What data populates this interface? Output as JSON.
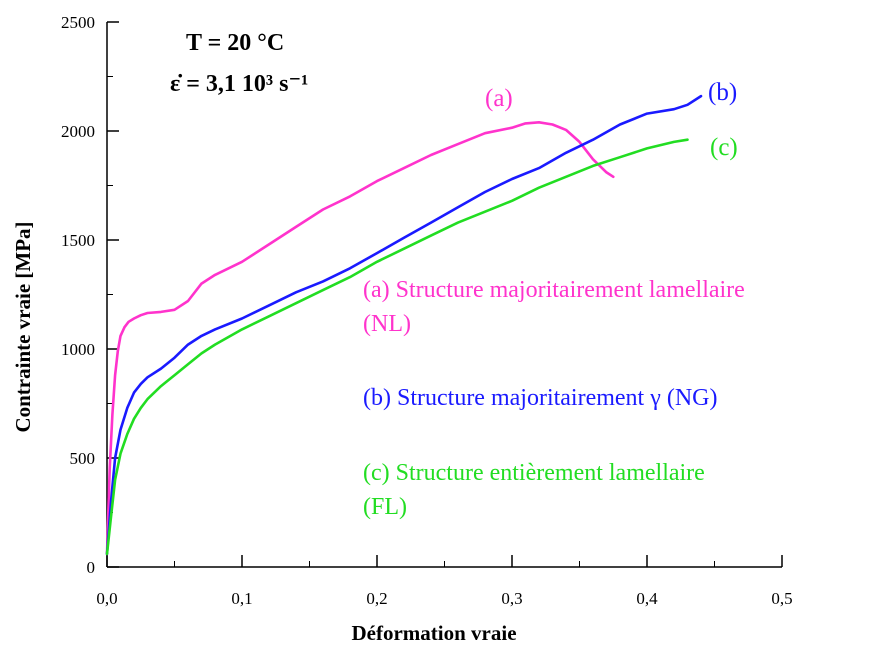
{
  "chart_data": {
    "type": "line",
    "xlabel": "Déformation vraie",
    "ylabel": "Contrainte vraie [MPa]",
    "xlim": [
      0,
      0.5
    ],
    "ylim": [
      0,
      2500
    ],
    "x_ticks": [
      0,
      0.1,
      0.2,
      0.3,
      0.4,
      0.5
    ],
    "x_tick_labels": [
      "0,0",
      "0,1",
      "0,2",
      "0,3",
      "0,4",
      "0,5"
    ],
    "y_ticks": [
      0,
      500,
      1000,
      1500,
      2000,
      2500
    ],
    "y_tick_labels": [
      "0",
      "500",
      "1000",
      "1500",
      "2000",
      "2500"
    ],
    "grid": false,
    "conditions": {
      "temperature_label": "T = 20 °C",
      "strain_rate_label": "ε̇ = 3,1 10³ s⁻¹"
    },
    "series": [
      {
        "label": "(a)",
        "name": "(a) Structure majoritairement lamellaire (NL)",
        "legend_lines": [
          "(a) Structure majoritairement lamellaire",
          "(NL)"
        ],
        "color": "#ff33cc",
        "x": [
          0.0,
          0.002,
          0.004,
          0.006,
          0.008,
          0.01,
          0.013,
          0.016,
          0.02,
          0.025,
          0.03,
          0.04,
          0.05,
          0.06,
          0.07,
          0.08,
          0.1,
          0.12,
          0.14,
          0.16,
          0.18,
          0.2,
          0.22,
          0.24,
          0.26,
          0.28,
          0.3,
          0.31,
          0.32,
          0.33,
          0.34,
          0.35,
          0.36,
          0.37,
          0.375
        ],
        "y": [
          60,
          450,
          700,
          880,
          990,
          1060,
          1100,
          1125,
          1140,
          1155,
          1165,
          1170,
          1180,
          1220,
          1300,
          1340,
          1400,
          1480,
          1560,
          1640,
          1700,
          1770,
          1830,
          1890,
          1940,
          1990,
          2015,
          2035,
          2040,
          2030,
          2005,
          1950,
          1870,
          1810,
          1790
        ]
      },
      {
        "label": "(b)",
        "name": "(b) Structure majoritairement γ (NG)",
        "legend_lines": [
          "(b) Structure majoritairement γ (NG)"
        ],
        "color": "#1a1aff",
        "x": [
          0.0,
          0.003,
          0.006,
          0.01,
          0.015,
          0.02,
          0.025,
          0.03,
          0.04,
          0.05,
          0.06,
          0.07,
          0.08,
          0.1,
          0.12,
          0.14,
          0.16,
          0.18,
          0.2,
          0.22,
          0.24,
          0.26,
          0.28,
          0.3,
          0.32,
          0.34,
          0.36,
          0.38,
          0.4,
          0.42,
          0.43,
          0.44
        ],
        "y": [
          60,
          300,
          500,
          630,
          730,
          800,
          840,
          870,
          910,
          960,
          1020,
          1060,
          1090,
          1140,
          1200,
          1260,
          1310,
          1370,
          1440,
          1510,
          1580,
          1650,
          1720,
          1780,
          1830,
          1900,
          1960,
          2030,
          2080,
          2100,
          2120,
          2160
        ]
      },
      {
        "label": "(c)",
        "name": "(c) Structure entièrement lamellaire (FL)",
        "legend_lines": [
          "(c) Structure entièrement lamellaire",
          "(FL)"
        ],
        "color": "#22dd22",
        "x": [
          0.0,
          0.003,
          0.006,
          0.01,
          0.015,
          0.02,
          0.025,
          0.03,
          0.04,
          0.05,
          0.06,
          0.07,
          0.08,
          0.1,
          0.12,
          0.14,
          0.16,
          0.18,
          0.2,
          0.22,
          0.24,
          0.26,
          0.28,
          0.3,
          0.32,
          0.34,
          0.36,
          0.38,
          0.4,
          0.42,
          0.43
        ],
        "y": [
          60,
          230,
          400,
          520,
          610,
          680,
          730,
          770,
          830,
          880,
          930,
          980,
          1020,
          1090,
          1150,
          1210,
          1270,
          1330,
          1400,
          1460,
          1520,
          1580,
          1630,
          1680,
          1740,
          1790,
          1840,
          1880,
          1920,
          1950,
          1960
        ]
      }
    ]
  }
}
